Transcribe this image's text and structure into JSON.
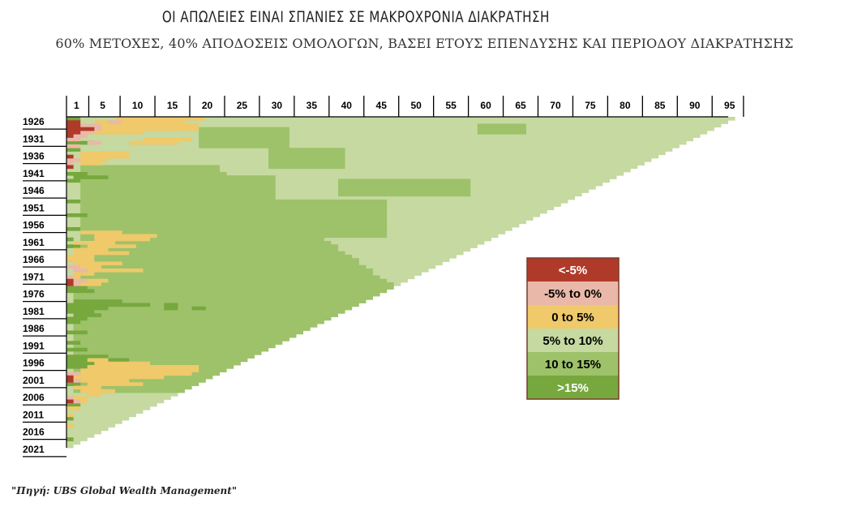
{
  "chart_data": {
    "type": "heatmap",
    "title": "ΟΙ ΑΠΩΛΕΙΕΣ ΕΙΝΑΙ ΣΠΑΝΙΕΣ ΣΕ ΜΑΚΡΟΧΡΟΝΙΑ ΔΙΑΚΡΑΤΗΣΗ",
    "subtitle": "60% ΜΕΤΟΧΕΣ, 40% ΑΠΟΔΟΣΕΙΣ ΟΜΟΛΟΓΩΝ, ΒΑΣΕΙ ΕΤΟΥΣ ΕΠΕΝΔΥΣΗΣ ΚΑΙ ΠΕΡΙΟΔΟΥ ΔΙΑΚΡΑΤΗΣΗΣ",
    "x_tick_labels": [
      "1",
      "5",
      "10",
      "15",
      "20",
      "25",
      "30",
      "35",
      "40",
      "45",
      "50",
      "55",
      "60",
      "65",
      "70",
      "75",
      "80",
      "85",
      "90",
      "95"
    ],
    "y_tick_labels": [
      "1926",
      "1931",
      "1936",
      "1941",
      "1946",
      "1951",
      "1956",
      "1961",
      "1966",
      "1971",
      "1976",
      "1981",
      "1986",
      "1991",
      "1996",
      "2001",
      "2006",
      "2011",
      "2016",
      "2021"
    ],
    "x_range": [
      1,
      95
    ],
    "y_range": [
      1926,
      2021
    ],
    "legend": {
      "position": "center-right",
      "entries": [
        {
          "label": "<-5%",
          "color": "#b03a2a",
          "text_color": "#ffffff"
        },
        {
          "label": "-5% to 0%",
          "color": "#eab8a8",
          "text_color": "#000000"
        },
        {
          "label": "0 to 5%",
          "color": "#efc96a",
          "text_color": "#000000"
        },
        {
          "label": "5% to 10%",
          "color": "#c5d9a0",
          "text_color": "#000000"
        },
        {
          "label": "10 to 15%",
          "color": "#9dc26a",
          "text_color": "#000000"
        },
        {
          "label": ">15%",
          "color": "#76a83e",
          "text_color": "#ffffff"
        }
      ]
    }
  },
  "source": "\"Πηγή: UBS Global Wealth Management\""
}
